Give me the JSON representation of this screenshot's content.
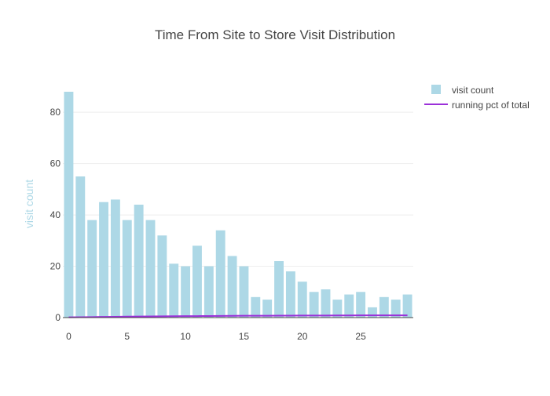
{
  "chart_data": {
    "type": "bar",
    "title": "Time From Site to Store Visit Distribution",
    "xlabel": "",
    "ylabel": "visit count",
    "xlim": [
      -0.5,
      29.5
    ],
    "ylim": [
      0,
      88
    ],
    "x_ticks": [
      0,
      5,
      10,
      15,
      20,
      25
    ],
    "y_ticks": [
      0,
      20,
      40,
      60,
      80
    ],
    "grid": true,
    "legend_position": "top-right",
    "x": [
      0,
      1,
      2,
      3,
      4,
      5,
      6,
      7,
      8,
      9,
      10,
      11,
      12,
      13,
      14,
      15,
      16,
      17,
      18,
      19,
      20,
      21,
      22,
      23,
      24,
      25,
      26,
      27,
      28,
      29
    ],
    "series": [
      {
        "name": "visit count",
        "type": "bar",
        "color": "#add8e6",
        "values": [
          88,
          55,
          38,
          45,
          46,
          38,
          44,
          38,
          32,
          21,
          20,
          28,
          20,
          34,
          24,
          20,
          8,
          7,
          22,
          18,
          14,
          10,
          11,
          7,
          9,
          10,
          4,
          8,
          7,
          9
        ]
      },
      {
        "name": "running pct of total",
        "type": "line",
        "color": "#9b30d9",
        "values": [
          0.1,
          0.17,
          0.21,
          0.27,
          0.32,
          0.37,
          0.42,
          0.47,
          0.51,
          0.53,
          0.56,
          0.59,
          0.62,
          0.66,
          0.69,
          0.71,
          0.72,
          0.73,
          0.76,
          0.78,
          0.8,
          0.81,
          0.82,
          0.83,
          0.84,
          0.86,
          0.86,
          0.87,
          0.88,
          0.89
        ]
      }
    ]
  }
}
